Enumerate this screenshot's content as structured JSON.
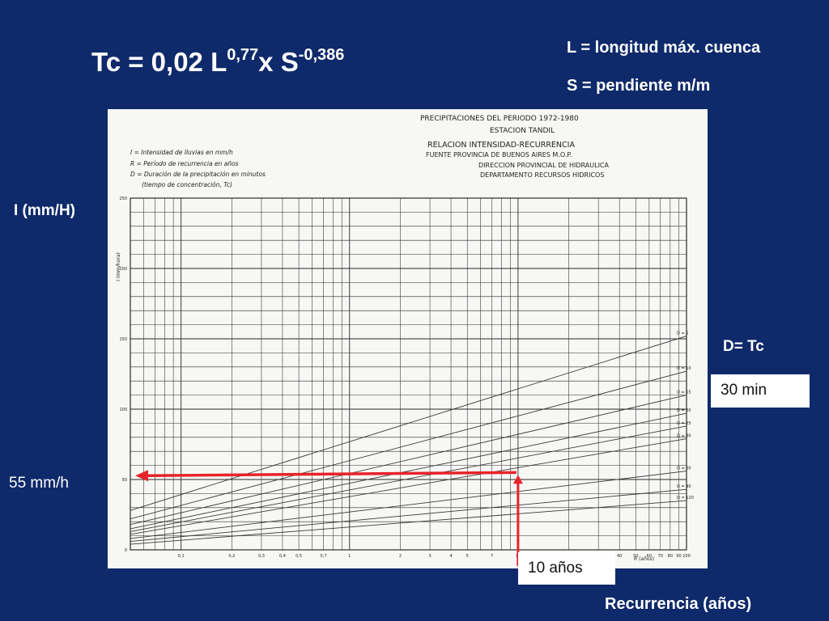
{
  "slide": {
    "formula": {
      "base": "Tc = 0,02 L",
      "exp1": "0,77",
      "mid": "x S",
      "exp2": "-0,386"
    },
    "legend_l": "L = longitud máx. cuenca",
    "legend_s": "S = pendiente m/m",
    "ylabel": "I (mm/H)",
    "dlabel": "D= Tc",
    "dvalue": "30 min",
    "ivalue": "55 mm/h",
    "rvalue": "10 años",
    "xlabel": "Recurrencia (años)"
  },
  "chart_data": {
    "type": "line",
    "title": "PRECIPITACIONES DEL PERIODO 1972-1980",
    "subtitle_lines": [
      "ESTACION TANDIL",
      "RELACION INTENSIDAD-RECURRENCIA",
      "FUENTE PROVINCIA DE BUENOS AIRES M.O.P.",
      "DIRECCION PROVINCIAL DE HIDRAULICA",
      "DEPARTAMENTO RECURSOS HIDRICOS"
    ],
    "notes": [
      "I = Intensidad de lluvias en mm/h",
      "R = Período de recurrencia en años",
      "D = Duración de la precipitación en minutos",
      "(tiempo de concentración, Tc)"
    ],
    "ylabel": "I (mm/hora)",
    "xlabel": "R (años)",
    "ylim": [
      0,
      250
    ],
    "xlim": [
      0.05,
      100
    ],
    "xscale": "log",
    "yticks": [
      0,
      50,
      100,
      150,
      200,
      250
    ],
    "xticks": [
      {
        "v": 0.1,
        "l": "0,1"
      },
      {
        "v": 0.2,
        "l": "0,2"
      },
      {
        "v": 0.3,
        "l": "0,3"
      },
      {
        "v": 0.4,
        "l": "0,4"
      },
      {
        "v": 0.5,
        "l": "0,5"
      },
      {
        "v": 0.7,
        "l": "0,7"
      },
      {
        "v": 1,
        "l": "1"
      },
      {
        "v": 2,
        "l": "2"
      },
      {
        "v": 3,
        "l": "3"
      },
      {
        "v": 4,
        "l": "4"
      },
      {
        "v": 5,
        "l": "5"
      },
      {
        "v": 7,
        "l": "7"
      },
      {
        "v": 10,
        "l": "10"
      },
      {
        "v": 20,
        "l": "20"
      },
      {
        "v": 30,
        "l": "30"
      },
      {
        "v": 40,
        "l": "40"
      },
      {
        "v": 50,
        "l": "50"
      },
      {
        "v": 60,
        "l": "60"
      },
      {
        "v": 70,
        "l": "70"
      },
      {
        "v": 80,
        "l": "80"
      },
      {
        "v": 90,
        "l": "90"
      },
      {
        "v": 100,
        "l": "100"
      }
    ],
    "series": [
      {
        "name": "D = 5",
        "x": [
          0.05,
          100
        ],
        "y": [
          28,
          152
        ]
      },
      {
        "name": "D = 10",
        "x": [
          0.05,
          100
        ],
        "y": [
          22,
          127
        ]
      },
      {
        "name": "D = 15",
        "x": [
          0.05,
          100
        ],
        "y": [
          18,
          110
        ]
      },
      {
        "name": "D = 20",
        "x": [
          0.05,
          100
        ],
        "y": [
          15,
          97
        ]
      },
      {
        "name": "D = 25",
        "x": [
          0.05,
          100
        ],
        "y": [
          13,
          88
        ]
      },
      {
        "name": "D = 30",
        "x": [
          0.05,
          100
        ],
        "y": [
          11,
          79
        ]
      },
      {
        "name": "D = 60",
        "x": [
          0.05,
          100
        ],
        "y": [
          8,
          56
        ]
      },
      {
        "name": "D = 90",
        "x": [
          0.05,
          100
        ],
        "y": [
          6,
          43
        ]
      },
      {
        "name": "D = 120",
        "x": [
          0.05,
          100
        ],
        "y": [
          4,
          35
        ]
      }
    ],
    "annotation": {
      "R": 10,
      "D": "30 min",
      "I": 55
    },
    "colors": {
      "annotation": "#e8232a",
      "grid": "#2a2a2a",
      "curves": "#3a3a3a"
    }
  }
}
